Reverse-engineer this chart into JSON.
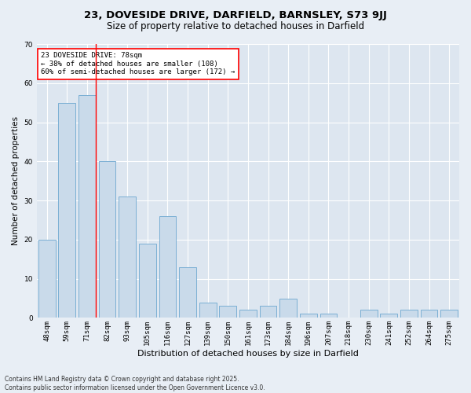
{
  "title1": "23, DOVESIDE DRIVE, DARFIELD, BARNSLEY, S73 9JJ",
  "title2": "Size of property relative to detached houses in Darfield",
  "xlabel": "Distribution of detached houses by size in Darfield",
  "ylabel": "Number of detached properties",
  "categories": [
    "48sqm",
    "59sqm",
    "71sqm",
    "82sqm",
    "93sqm",
    "105sqm",
    "116sqm",
    "127sqm",
    "139sqm",
    "150sqm",
    "161sqm",
    "173sqm",
    "184sqm",
    "196sqm",
    "207sqm",
    "218sqm",
    "230sqm",
    "241sqm",
    "252sqm",
    "264sqm",
    "275sqm"
  ],
  "values": [
    20,
    55,
    57,
    40,
    31,
    19,
    26,
    13,
    4,
    3,
    2,
    3,
    5,
    1,
    1,
    0,
    2,
    1,
    2,
    2,
    2
  ],
  "bar_color": "#c9daea",
  "bar_edge_color": "#7bafd4",
  "bg_color": "#e8eef5",
  "plot_bg_color": "#dde6f0",
  "grid_color": "#ffffff",
  "red_line_index": 2,
  "annotation_title": "23 DOVESIDE DRIVE: 78sqm",
  "annotation_line1": "← 38% of detached houses are smaller (108)",
  "annotation_line2": "60% of semi-detached houses are larger (172) →",
  "ylim": [
    0,
    70
  ],
  "yticks": [
    0,
    10,
    20,
    30,
    40,
    50,
    60,
    70
  ],
  "footnote1": "Contains HM Land Registry data © Crown copyright and database right 2025.",
  "footnote2": "Contains public sector information licensed under the Open Government Licence v3.0.",
  "title1_fontsize": 9.5,
  "title2_fontsize": 8.5,
  "ylabel_fontsize": 7.5,
  "xlabel_fontsize": 8,
  "tick_fontsize": 6.5,
  "ann_fontsize": 6.5,
  "footnote_fontsize": 5.5
}
